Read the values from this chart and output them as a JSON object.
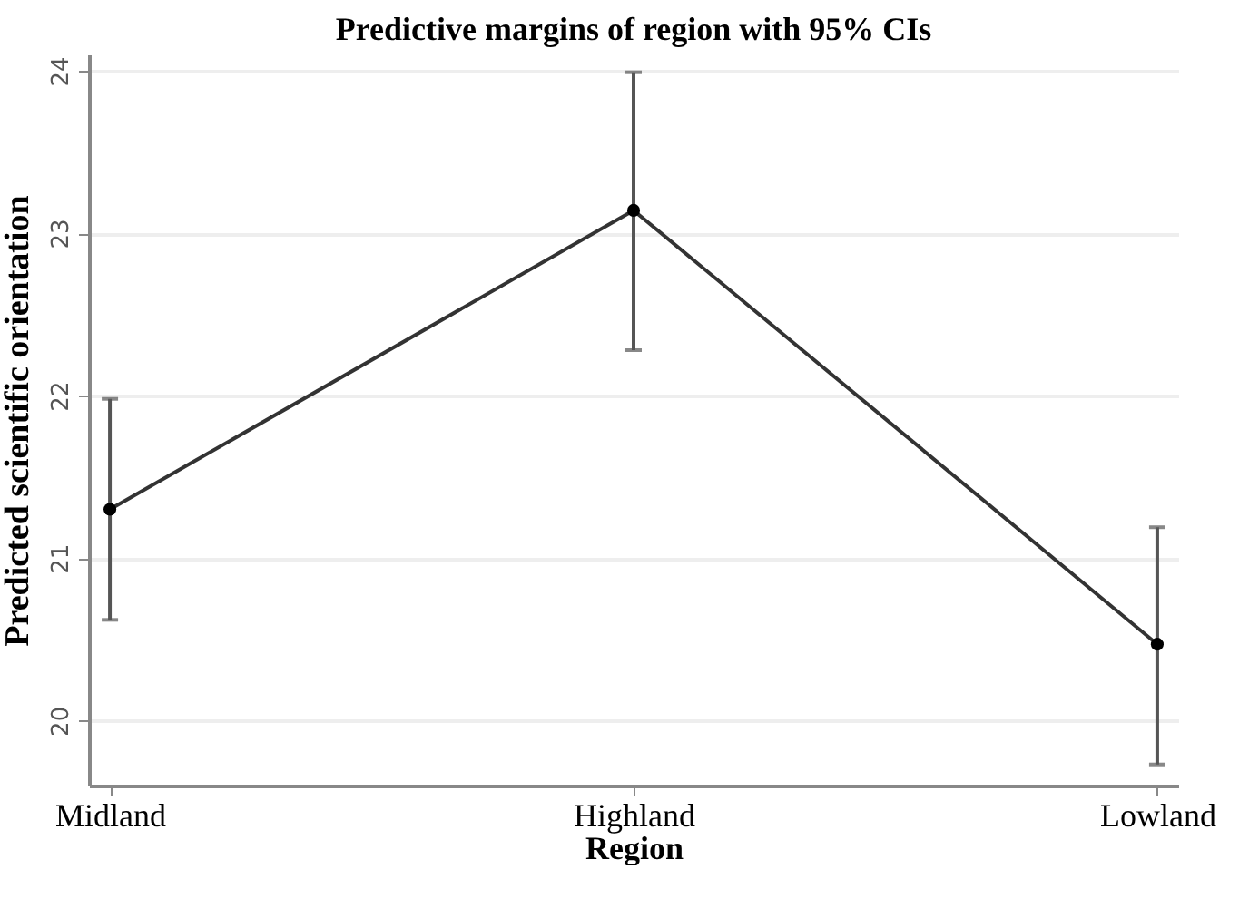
{
  "chart_data": {
    "type": "line",
    "title": "Predictive margins of region with 95% CIs",
    "xlabel": "Region",
    "ylabel": "Predicted scientific orientation",
    "categories": [
      "Midland",
      "Highland",
      "Lowland"
    ],
    "series": [
      {
        "color": "#333333",
        "values": [
          21.3,
          23.14,
          20.47
        ],
        "errors": [
          [
            20.62,
            21.98
          ],
          [
            22.28,
            23.99
          ],
          [
            19.73,
            21.19
          ]
        ]
      }
    ],
    "ylim": [
      19.6,
      24.1
    ],
    "yticks": [
      20,
      21,
      22,
      23,
      24
    ],
    "grid": "y",
    "marker": "circle",
    "line_style": "solid"
  }
}
